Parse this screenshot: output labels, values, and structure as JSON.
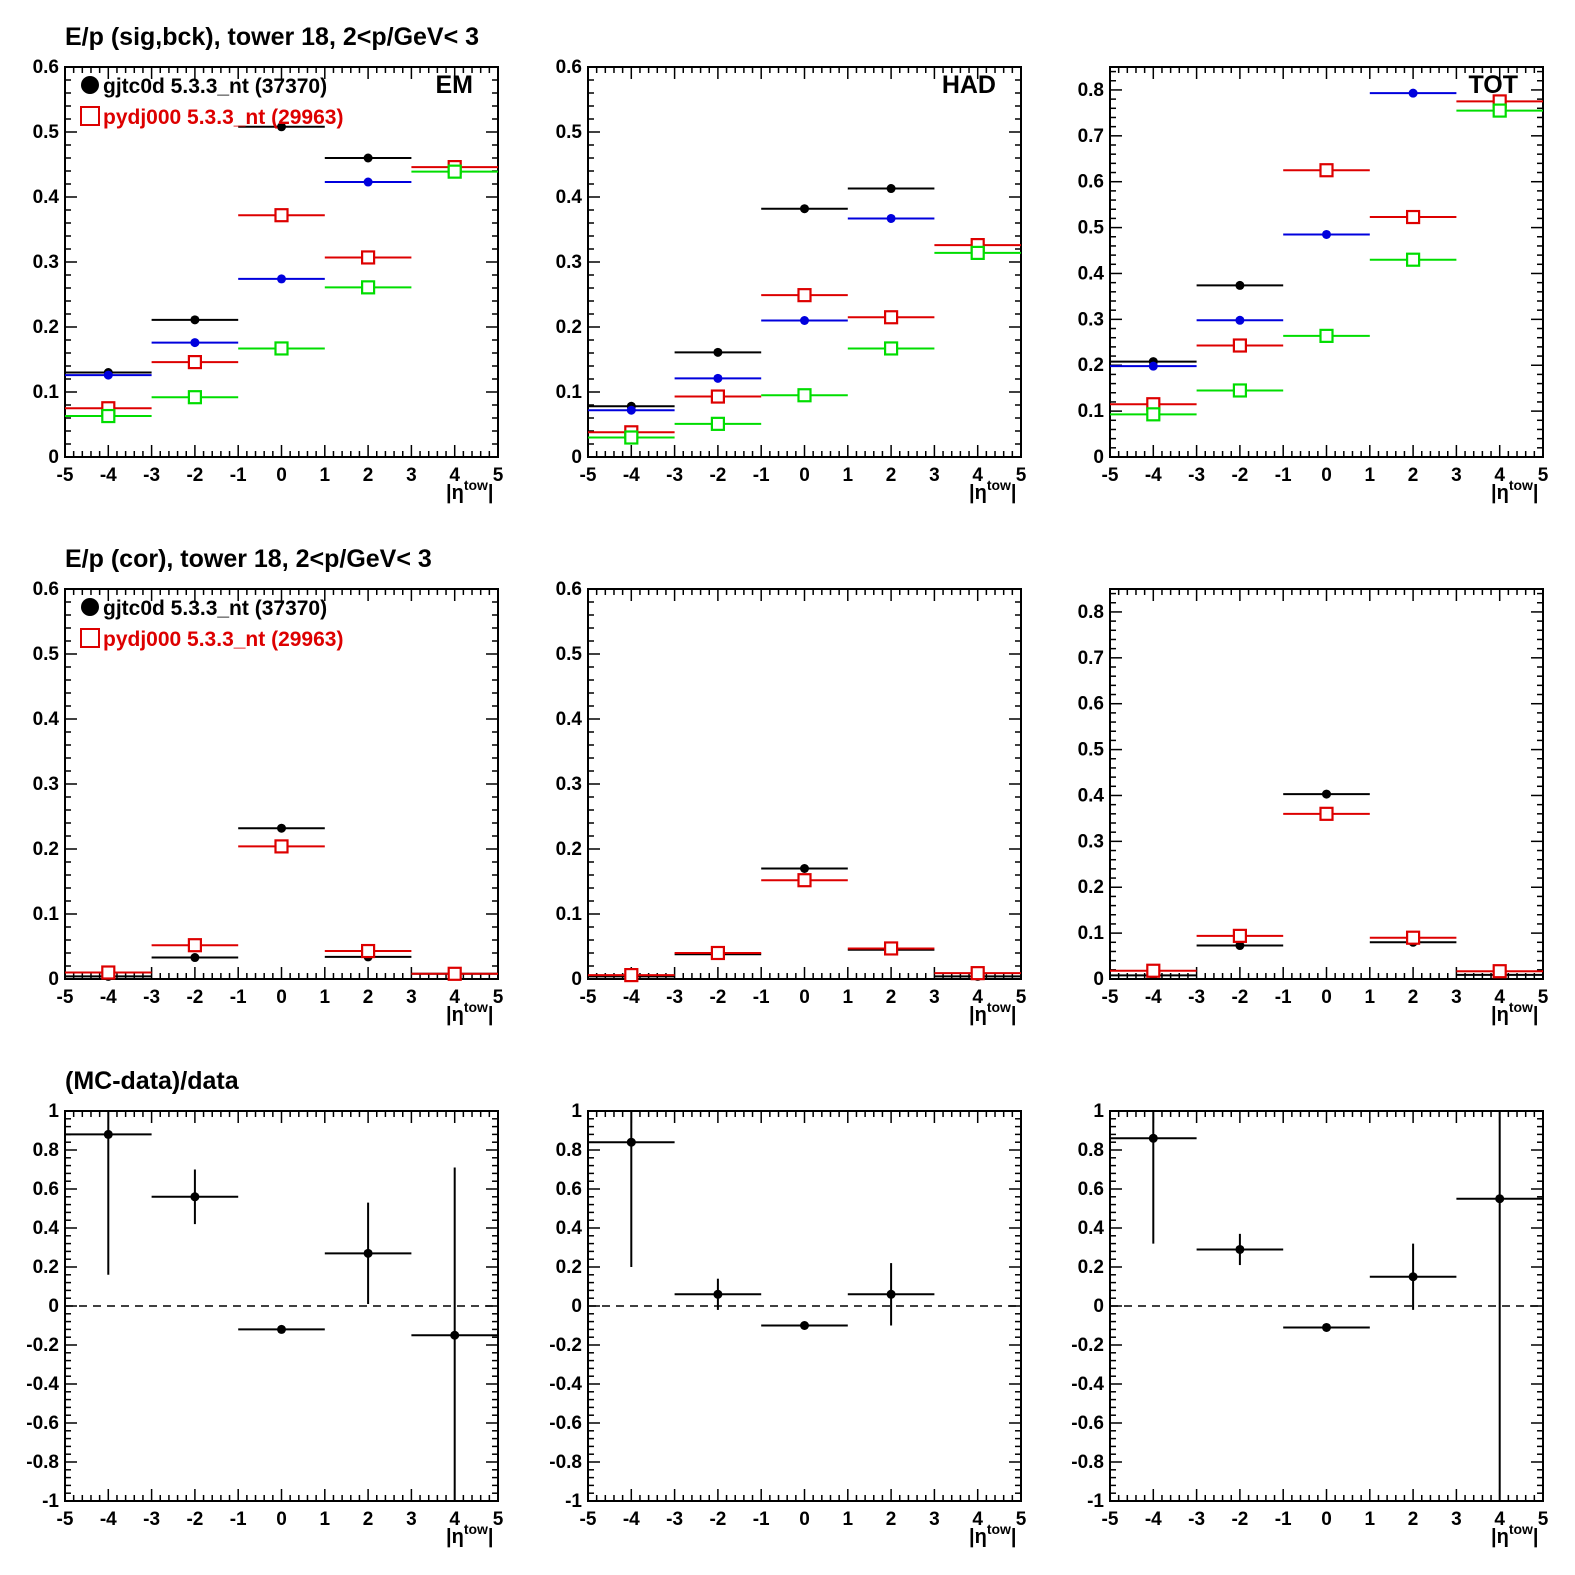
{
  "row_titles": [
    "E/p (sig,bck), tower 18,  2<p/GeV< 3",
    "E/p (cor), tower 18,  2<p/GeV< 3",
    "(MC-data)/data"
  ],
  "panel_tags": [
    "EM",
    "HAD",
    "TOT"
  ],
  "x_axis_label": {
    "main": "|η",
    "sup": "tow",
    "end": "|"
  },
  "legend": [
    {
      "label": "gjtc0d 5.3.3_nt (37370)",
      "marker": "filled-circle",
      "color": "#000000"
    },
    {
      "label": "pydj000 5.3.3_nt (29963)",
      "marker": "open-square",
      "color": "#dd0000"
    }
  ],
  "colors": {
    "data": "#000000",
    "mc": "#dd0000",
    "blue": "#0000dd",
    "green": "#00dd00"
  },
  "chart_data": [
    {
      "type": "scatter",
      "row": 0,
      "col": 0,
      "tag": "EM",
      "xlim": [
        -5,
        5
      ],
      "ylim": [
        0,
        0.6
      ],
      "xticks": [
        -5,
        -4,
        -3,
        -2,
        -1,
        0,
        1,
        2,
        3,
        4,
        5
      ],
      "yticks": [
        0,
        0.1,
        0.2,
        0.3,
        0.4,
        0.5,
        0.6
      ],
      "x_bins": [
        [
          -5,
          -3
        ],
        [
          -3,
          -1
        ],
        [
          -1,
          1
        ],
        [
          1,
          3
        ],
        [
          3,
          5
        ]
      ],
      "series": [
        {
          "name": "gjtc0d 5.3.3_nt (37370)",
          "color": "#000000",
          "marker": "dot",
          "values": [
            0.13,
            0.211,
            0.508,
            0.46,
            null
          ]
        },
        {
          "color": "#0000dd",
          "marker": "dot",
          "values": [
            0.126,
            0.176,
            0.274,
            0.423,
            null
          ]
        },
        {
          "name": "pydj000 5.3.3_nt (29963)",
          "color": "#dd0000",
          "marker": "open-square",
          "values": [
            0.075,
            0.146,
            0.372,
            0.307,
            0.446
          ]
        },
        {
          "color": "#00dd00",
          "marker": "open-square",
          "values": [
            0.063,
            0.092,
            0.167,
            0.261,
            0.439
          ]
        }
      ]
    },
    {
      "type": "scatter",
      "row": 0,
      "col": 1,
      "tag": "HAD",
      "xlim": [
        -5,
        5
      ],
      "ylim": [
        0,
        0.6
      ],
      "xticks": [
        -5,
        -4,
        -3,
        -2,
        -1,
        0,
        1,
        2,
        3,
        4,
        5
      ],
      "yticks": [
        0,
        0.1,
        0.2,
        0.3,
        0.4,
        0.5,
        0.6
      ],
      "x_bins": [
        [
          -5,
          -3
        ],
        [
          -3,
          -1
        ],
        [
          -1,
          1
        ],
        [
          1,
          3
        ],
        [
          3,
          5
        ]
      ],
      "series": [
        {
          "color": "#000000",
          "marker": "dot",
          "values": [
            0.078,
            0.161,
            0.382,
            0.413,
            null
          ]
        },
        {
          "color": "#0000dd",
          "marker": "dot",
          "values": [
            0.072,
            0.121,
            0.21,
            0.367,
            null
          ]
        },
        {
          "color": "#dd0000",
          "marker": "open-square",
          "values": [
            0.038,
            0.093,
            0.249,
            0.215,
            0.326
          ]
        },
        {
          "color": "#00dd00",
          "marker": "open-square",
          "values": [
            0.03,
            0.051,
            0.095,
            0.167,
            0.314
          ]
        }
      ]
    },
    {
      "type": "scatter",
      "row": 0,
      "col": 2,
      "tag": "TOT",
      "xlim": [
        -5,
        5
      ],
      "ylim": [
        0,
        0.85
      ],
      "xticks": [
        -5,
        -4,
        -3,
        -2,
        -1,
        0,
        1,
        2,
        3,
        4,
        5
      ],
      "yticks": [
        0,
        0.1,
        0.2,
        0.3,
        0.4,
        0.5,
        0.6,
        0.7,
        0.8
      ],
      "x_bins": [
        [
          -5,
          -3
        ],
        [
          -3,
          -1
        ],
        [
          -1,
          1
        ],
        [
          1,
          3
        ],
        [
          3,
          5
        ]
      ],
      "series": [
        {
          "color": "#000000",
          "marker": "dot",
          "values": [
            0.208,
            0.374,
            null,
            null,
            null
          ]
        },
        {
          "color": "#0000dd",
          "marker": "dot",
          "values": [
            0.198,
            0.298,
            0.485,
            0.793,
            null
          ]
        },
        {
          "color": "#dd0000",
          "marker": "open-square",
          "values": [
            0.115,
            0.243,
            0.625,
            0.523,
            0.775
          ]
        },
        {
          "color": "#00dd00",
          "marker": "open-square",
          "values": [
            0.093,
            0.145,
            0.264,
            0.43,
            0.755
          ]
        }
      ]
    },
    {
      "type": "scatter",
      "row": 1,
      "col": 0,
      "xlim": [
        -5,
        5
      ],
      "ylim": [
        0,
        0.6
      ],
      "xticks": [
        -5,
        -4,
        -3,
        -2,
        -1,
        0,
        1,
        2,
        3,
        4,
        5
      ],
      "yticks": [
        0,
        0.1,
        0.2,
        0.3,
        0.4,
        0.5,
        0.6
      ],
      "x_bins": [
        [
          -5,
          -3
        ],
        [
          -3,
          -1
        ],
        [
          -1,
          1
        ],
        [
          1,
          3
        ],
        [
          3,
          5
        ]
      ],
      "series": [
        {
          "name": "gjtc0d 5.3.3_nt (37370)",
          "color": "#000000",
          "marker": "dot",
          "values": [
            0.004,
            0.033,
            0.232,
            0.034,
            0.008
          ]
        },
        {
          "name": "pydj000 5.3.3_nt (29963)",
          "color": "#dd0000",
          "marker": "open-square",
          "values": [
            0.01,
            0.052,
            0.204,
            0.043,
            0.008
          ]
        }
      ]
    },
    {
      "type": "scatter",
      "row": 1,
      "col": 1,
      "xlim": [
        -5,
        5
      ],
      "ylim": [
        0,
        0.6
      ],
      "xticks": [
        -5,
        -4,
        -3,
        -2,
        -1,
        0,
        1,
        2,
        3,
        4,
        5
      ],
      "yticks": [
        0,
        0.1,
        0.2,
        0.3,
        0.4,
        0.5,
        0.6
      ],
      "x_bins": [
        [
          -5,
          -3
        ],
        [
          -3,
          -1
        ],
        [
          -1,
          1
        ],
        [
          1,
          3
        ],
        [
          3,
          5
        ]
      ],
      "series": [
        {
          "color": "#000000",
          "marker": "dot",
          "values": [
            0.004,
            0.038,
            0.17,
            0.045,
            0.004
          ]
        },
        {
          "color": "#dd0000",
          "marker": "open-square",
          "values": [
            0.006,
            0.04,
            0.152,
            0.047,
            0.009
          ]
        }
      ]
    },
    {
      "type": "scatter",
      "row": 1,
      "col": 2,
      "xlim": [
        -5,
        5
      ],
      "ylim": [
        0,
        0.85
      ],
      "xticks": [
        -5,
        -4,
        -3,
        -2,
        -1,
        0,
        1,
        2,
        3,
        4,
        5
      ],
      "yticks": [
        0,
        0.1,
        0.2,
        0.3,
        0.4,
        0.5,
        0.6,
        0.7,
        0.8
      ],
      "x_bins": [
        [
          -5,
          -3
        ],
        [
          -3,
          -1
        ],
        [
          -1,
          1
        ],
        [
          1,
          3
        ],
        [
          3,
          5
        ]
      ],
      "series": [
        {
          "color": "#000000",
          "marker": "dot",
          "values": [
            0.008,
            0.073,
            0.403,
            0.08,
            0.009
          ]
        },
        {
          "color": "#dd0000",
          "marker": "open-square",
          "values": [
            0.018,
            0.094,
            0.36,
            0.09,
            0.017
          ]
        }
      ]
    },
    {
      "type": "scatter",
      "row": 2,
      "col": 0,
      "xlim": [
        -5,
        5
      ],
      "ylim": [
        -1,
        1
      ],
      "xticks": [
        -5,
        -4,
        -3,
        -2,
        -1,
        0,
        1,
        2,
        3,
        4,
        5
      ],
      "yticks": [
        -1,
        -0.8,
        -0.6,
        -0.4,
        -0.2,
        0,
        0.2,
        0.4,
        0.6,
        0.8,
        1
      ],
      "ytick_labels": [
        "-1",
        "-0.8",
        "-0.6",
        "-0.4",
        "-0.2",
        "0",
        "0.2",
        "0.4",
        "0.6",
        "0.8",
        "1"
      ],
      "reference_line": 0,
      "x_bins": [
        [
          -5,
          -3
        ],
        [
          -3,
          -1
        ],
        [
          -1,
          1
        ],
        [
          1,
          3
        ],
        [
          3,
          5
        ]
      ],
      "series": [
        {
          "color": "#000000",
          "marker": "dot",
          "values": [
            0.88,
            0.56,
            -0.12,
            0.27,
            -0.15
          ],
          "yerr": [
            0.72,
            0.14,
            0.02,
            0.26,
            0.86
          ]
        }
      ]
    },
    {
      "type": "scatter",
      "row": 2,
      "col": 1,
      "xlim": [
        -5,
        5
      ],
      "ylim": [
        -1,
        1
      ],
      "xticks": [
        -5,
        -4,
        -3,
        -2,
        -1,
        0,
        1,
        2,
        3,
        4,
        5
      ],
      "yticks": [
        -1,
        -0.8,
        -0.6,
        -0.4,
        -0.2,
        0,
        0.2,
        0.4,
        0.6,
        0.8,
        1
      ],
      "ytick_labels": [
        "-1",
        "-0.8",
        "-0.6",
        "-0.4",
        "-0.2",
        "0",
        "0.2",
        "0.4",
        "0.6",
        "0.8",
        "1"
      ],
      "reference_line": 0,
      "x_bins": [
        [
          -5,
          -3
        ],
        [
          -3,
          -1
        ],
        [
          -1,
          1
        ],
        [
          1,
          3
        ],
        [
          3,
          5
        ]
      ],
      "series": [
        {
          "color": "#000000",
          "marker": "dot",
          "values": [
            0.84,
            0.06,
            -0.1,
            0.06,
            null
          ],
          "yerr": [
            0.64,
            0.08,
            0.02,
            0.16,
            null
          ]
        }
      ]
    },
    {
      "type": "scatter",
      "row": 2,
      "col": 2,
      "xlim": [
        -5,
        5
      ],
      "ylim": [
        -1,
        1
      ],
      "xticks": [
        -5,
        -4,
        -3,
        -2,
        -1,
        0,
        1,
        2,
        3,
        4,
        5
      ],
      "yticks": [
        -1,
        -0.8,
        -0.6,
        -0.4,
        -0.2,
        0,
        0.2,
        0.4,
        0.6,
        0.8,
        1
      ],
      "ytick_labels": [
        "-1",
        "-0.8",
        "-0.6",
        "-0.4",
        "-0.2",
        "0",
        "0.2",
        "0.4",
        "0.6",
        "0.8",
        "1"
      ],
      "reference_line": 0,
      "x_bins": [
        [
          -5,
          -3
        ],
        [
          -3,
          -1
        ],
        [
          -1,
          1
        ],
        [
          1,
          3
        ],
        [
          3,
          5
        ]
      ],
      "series": [
        {
          "color": "#000000",
          "marker": "dot",
          "values": [
            0.86,
            0.29,
            -0.11,
            0.15,
            0.55
          ],
          "yerr": [
            0.54,
            0.08,
            0.02,
            0.17,
            1.55
          ]
        }
      ]
    }
  ]
}
